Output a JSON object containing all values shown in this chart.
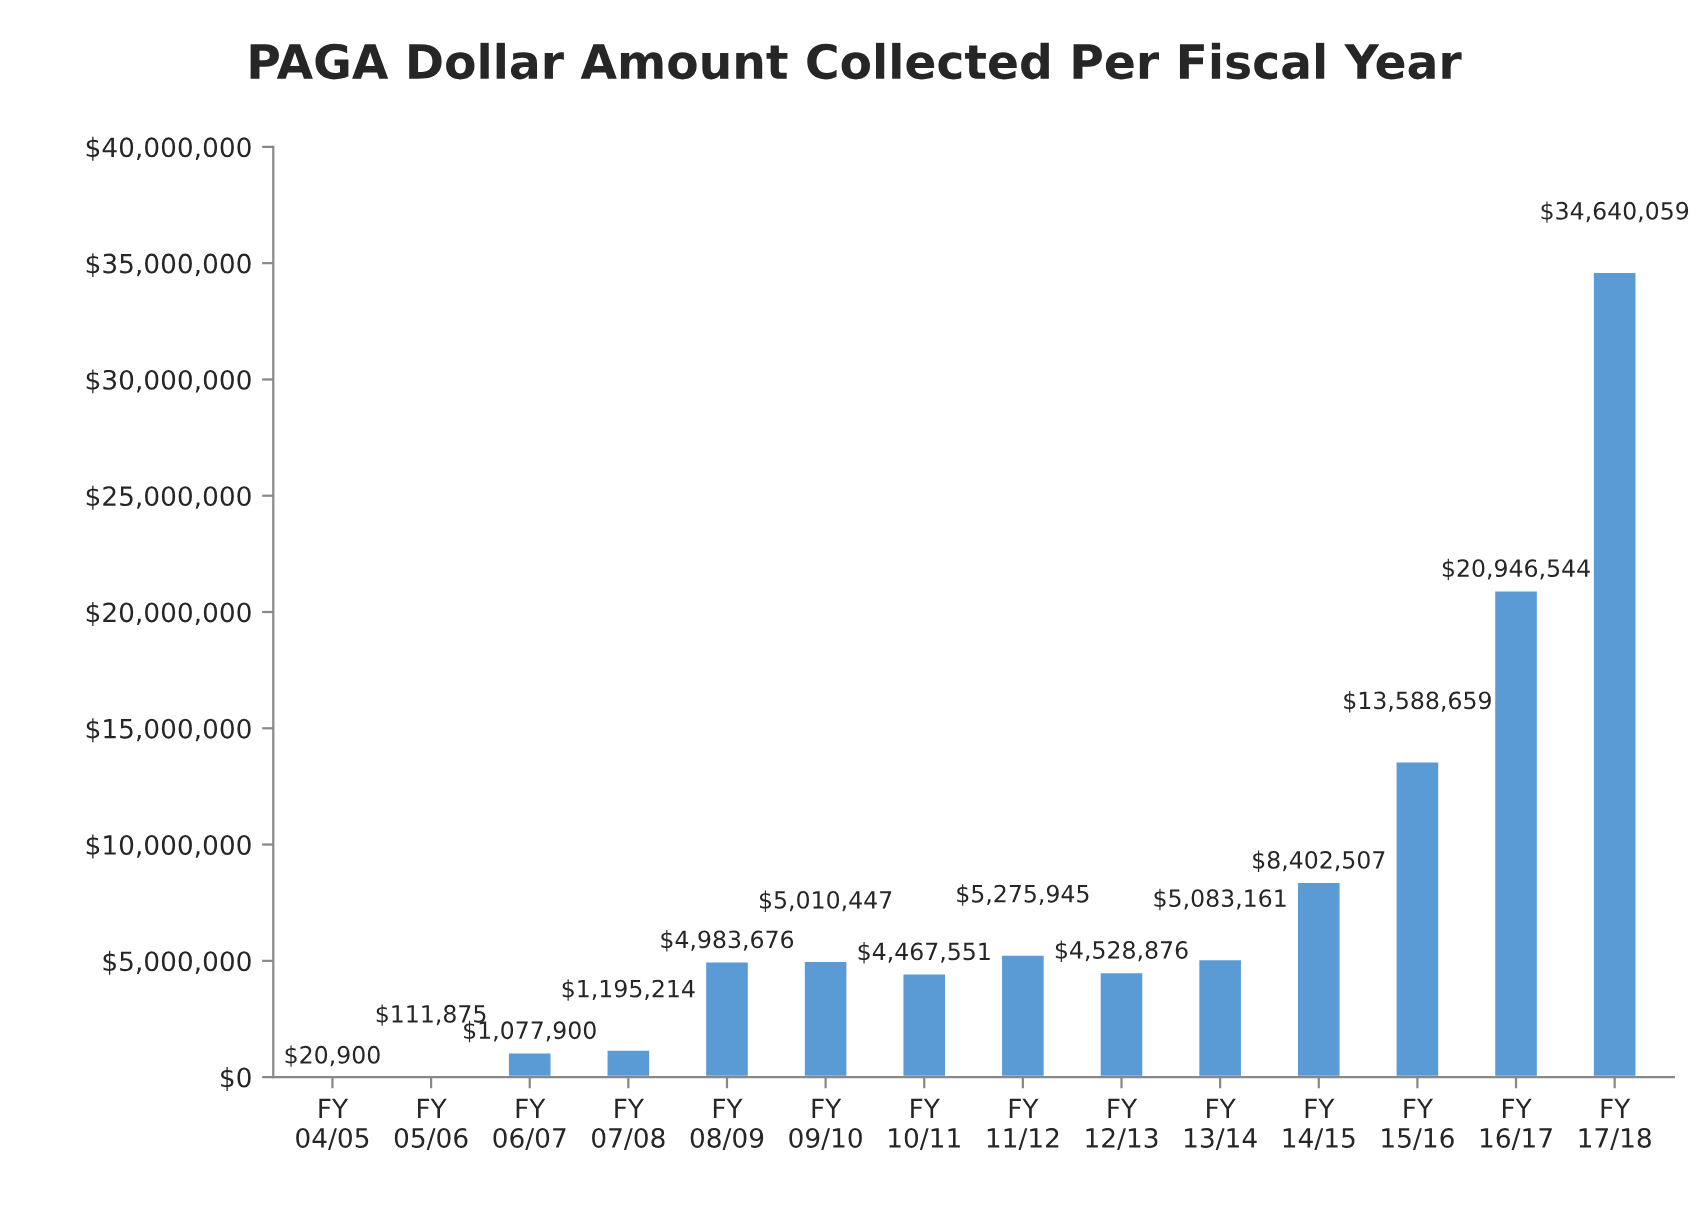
{
  "chart_data": {
    "type": "bar",
    "title": "PAGA Dollar Amount Collected Per Fiscal Year",
    "categories": [
      "FY\n04/05",
      "FY\n05/06",
      "FY\n06/07",
      "FY\n07/08",
      "FY\n08/09",
      "FY\n09/10",
      "FY\n10/11",
      "FY\n11/12",
      "FY\n12/13",
      "FY\n13/14",
      "FY\n14/15",
      "FY\n15/16",
      "FY\n16/17",
      "FY\n17/18"
    ],
    "values": [
      20900,
      111875,
      1077900,
      1195214,
      4983676,
      5010447,
      4467551,
      5275945,
      4528876,
      5083161,
      8402507,
      13588659,
      20946544,
      34640059
    ],
    "value_labels": [
      "$20,900",
      "$111,875",
      "$1,077,900",
      "$1,195,214",
      "$4,983,676",
      "$5,010,447",
      "$4,467,551",
      "$5,275,945",
      "$4,528,876",
      "$5,083,161",
      "$8,402,507",
      "$13,588,659",
      "$20,946,544",
      "$34,640,059"
    ],
    "color": "#5b9bd5",
    "ylim": [
      0,
      40000000
    ],
    "yticks": [
      {
        "value": 0,
        "label": "$0"
      },
      {
        "value": 5000000,
        "label": "$5,000,000"
      },
      {
        "value": 10000000,
        "label": "$10,000,000"
      },
      {
        "value": 15000000,
        "label": "$15,000,000"
      },
      {
        "value": 20000000,
        "label": "$20,000,000"
      },
      {
        "value": 25000000,
        "label": "$25,000,000"
      },
      {
        "value": 30000000,
        "label": "$30,000,000"
      },
      {
        "value": 35000000,
        "label": "$35,000,000"
      },
      {
        "value": 40000000,
        "label": "$40,000,000"
      }
    ],
    "grid": false,
    "legend": false
  }
}
